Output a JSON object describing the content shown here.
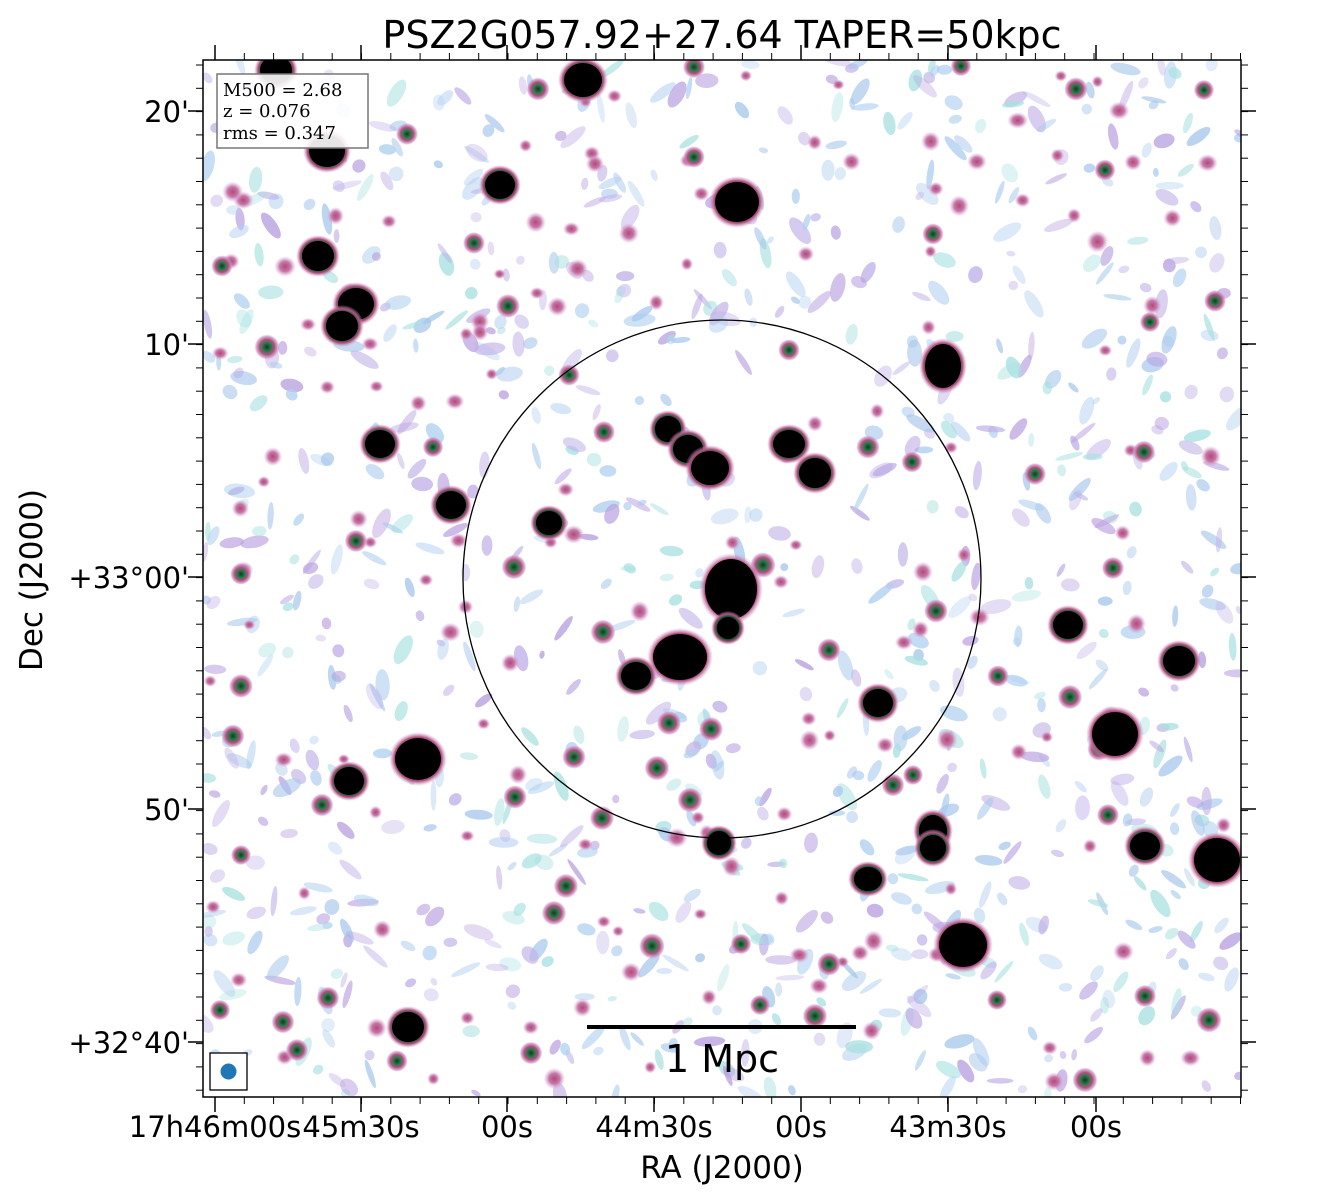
{
  "title": "PSZ2G057.92+27.64 TAPER=50kpc",
  "info_box": {
    "line1": "M500 = 2.68",
    "line2": "z = 0.076",
    "line3": "rms = 0.347"
  },
  "axes": {
    "xlabel": "RA (J2000)",
    "ylabel": "Dec (J2000)",
    "xticks": [
      "17h46m00s",
      "45m30s",
      "00s",
      "44m30s",
      "00s",
      "43m30s",
      "00s"
    ],
    "yticks": [
      "20'",
      "10'",
      "+33°00'",
      "50'",
      "+32°40'"
    ]
  },
  "scale_bar": {
    "label": "1 Mpc"
  },
  "colors": {
    "source": "#000000",
    "ring_inner": "#2e8b57",
    "halo": "#c46a9a",
    "noise_light": "#a8c8ec",
    "noise_purple": "#b8a0e0",
    "noise_teal": "#a8e0e0",
    "beam": "#1f77b4",
    "circle": "#000000"
  }
}
